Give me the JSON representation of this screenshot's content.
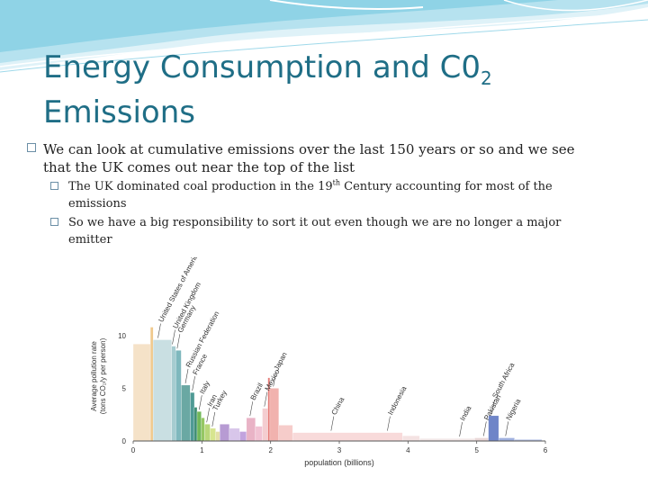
{
  "title": {
    "main": "Energy Consumption and C0",
    "sub": "2",
    "line2": "Emissions"
  },
  "bullets": [
    {
      "text": "We can look at cumulative emissions over the last 150 years or so and we see that the UK comes out near the top of the list",
      "children": [
        {
          "before": "The UK dominated coal production in the 19",
          "sup": "th",
          "after": " Century accounting for most of the emissions"
        },
        {
          "text": "So we have a big responsibility to sort it out even though we are no longer a major emitter"
        }
      ]
    }
  ],
  "colors": {
    "title": "#1f6e86",
    "header_wave": "#8fd3e6",
    "bullet_box": "#6b8fa6"
  },
  "chart_data": {
    "type": "bar",
    "variable_width": true,
    "xlabel": "population (billions)",
    "ylabel_line1": "Average pollution rate",
    "ylabel_line2": "(tons CO₂/y per person)",
    "xlim": [
      0,
      6
    ],
    "ylim": [
      0,
      14
    ],
    "x_ticks": [
      "0",
      "1",
      "2",
      "3",
      "4",
      "5",
      "6"
    ],
    "y_ticks": [
      "0",
      "5",
      "10"
    ],
    "bars": [
      {
        "start": 0.0,
        "width": 0.25,
        "value": 9.2,
        "color": "#f5e2c8",
        "label": ""
      },
      {
        "start": 0.25,
        "width": 0.04,
        "value": 10.8,
        "color": "#f0c98d",
        "label": ""
      },
      {
        "start": 0.29,
        "width": 0.27,
        "value": 9.6,
        "color": "#c9dfe2",
        "label": "United States of America"
      },
      {
        "start": 0.56,
        "width": 0.06,
        "value": 9.0,
        "color": "#a6ccd0",
        "label": "United Kingdom"
      },
      {
        "start": 0.62,
        "width": 0.08,
        "value": 8.6,
        "color": "#7fb8bd",
        "label": "Germany"
      },
      {
        "start": 0.7,
        "width": 0.13,
        "value": 5.3,
        "color": "#6aa8a3",
        "label": "Russian Federation"
      },
      {
        "start": 0.83,
        "width": 0.06,
        "value": 4.6,
        "color": "#4f9a95",
        "label": "France"
      },
      {
        "start": 0.89,
        "width": 0.04,
        "value": 3.2,
        "color": "#3f8e73",
        "label": ""
      },
      {
        "start": 0.93,
        "width": 0.06,
        "value": 2.8,
        "color": "#72b85a",
        "label": "Italy"
      },
      {
        "start": 0.99,
        "width": 0.05,
        "value": 2.2,
        "color": "#95c764",
        "label": ""
      },
      {
        "start": 1.04,
        "width": 0.08,
        "value": 1.6,
        "color": "#b8d77a",
        "label": "Iran"
      },
      {
        "start": 1.12,
        "width": 0.08,
        "value": 1.2,
        "color": "#d7e58f",
        "label": "Turkey"
      },
      {
        "start": 1.2,
        "width": 0.06,
        "value": 0.9,
        "color": "#e3dfa7",
        "label": ""
      },
      {
        "start": 1.26,
        "width": 0.14,
        "value": 1.6,
        "color": "#b79bd3",
        "label": ""
      },
      {
        "start": 1.4,
        "width": 0.15,
        "value": 1.2,
        "color": "#d8c6ea",
        "label": ""
      },
      {
        "start": 1.55,
        "width": 0.1,
        "value": 0.9,
        "color": "#c2a3de",
        "label": ""
      },
      {
        "start": 1.65,
        "width": 0.13,
        "value": 2.2,
        "color": "#e9b3c6",
        "label": "Brazil"
      },
      {
        "start": 1.78,
        "width": 0.1,
        "value": 1.4,
        "color": "#f1c2d3",
        "label": ""
      },
      {
        "start": 1.88,
        "width": 0.08,
        "value": 3.1,
        "color": "#f4cdd0",
        "label": "Mexico"
      },
      {
        "start": 1.96,
        "width": 0.03,
        "value": 6.0,
        "color": "#e57b76",
        "label": ""
      },
      {
        "start": 1.99,
        "width": 0.13,
        "value": 5.0,
        "color": "#f1b2ae",
        "label": "Japan"
      },
      {
        "start": 2.12,
        "width": 0.2,
        "value": 1.5,
        "color": "#f6ccca",
        "label": ""
      },
      {
        "start": 2.32,
        "width": 1.6,
        "value": 0.8,
        "color": "#f8dada",
        "label": "China"
      },
      {
        "start": 3.92,
        "width": 0.25,
        "value": 0.5,
        "color": "#f4e3e3",
        "label": "Indonesia"
      },
      {
        "start": 4.17,
        "width": 0.8,
        "value": 0.25,
        "color": "#f2e8e8",
        "label": "India"
      },
      {
        "start": 4.97,
        "width": 0.2,
        "value": 0.3,
        "color": "#ead8d8",
        "label": "Pakistan"
      },
      {
        "start": 5.17,
        "width": 0.15,
        "value": 2.4,
        "color": "#6f85c8",
        "label": "South Africa"
      },
      {
        "start": 5.32,
        "width": 0.23,
        "value": 0.3,
        "color": "#9fb0de",
        "label": "Nigeria"
      },
      {
        "start": 5.55,
        "width": 0.4,
        "value": 0.15,
        "color": "#b8c4e6",
        "label": ""
      }
    ],
    "annotations": [
      {
        "text": "United States of America",
        "x": 0.36
      },
      {
        "text": "United Kingdom",
        "x": 0.57
      },
      {
        "text": "Germany",
        "x": 0.64
      },
      {
        "text": "Russian Federation",
        "x": 0.76
      },
      {
        "text": "France",
        "x": 0.86
      },
      {
        "text": "Italy",
        "x": 0.96
      },
      {
        "text": "Iran",
        "x": 1.07
      },
      {
        "text": "Turkey",
        "x": 1.15
      },
      {
        "text": "Brazil",
        "x": 1.7
      },
      {
        "text": "Mexico",
        "x": 1.91
      },
      {
        "text": "Japan",
        "x": 2.04
      },
      {
        "text": "China",
        "x": 2.88
      },
      {
        "text": "Indonesia",
        "x": 3.7
      },
      {
        "text": "India",
        "x": 4.75
      },
      {
        "text": "Pakistan",
        "x": 5.1
      },
      {
        "text": "South Africa",
        "x": 5.22
      },
      {
        "text": "Nigeria",
        "x": 5.42
      }
    ]
  }
}
